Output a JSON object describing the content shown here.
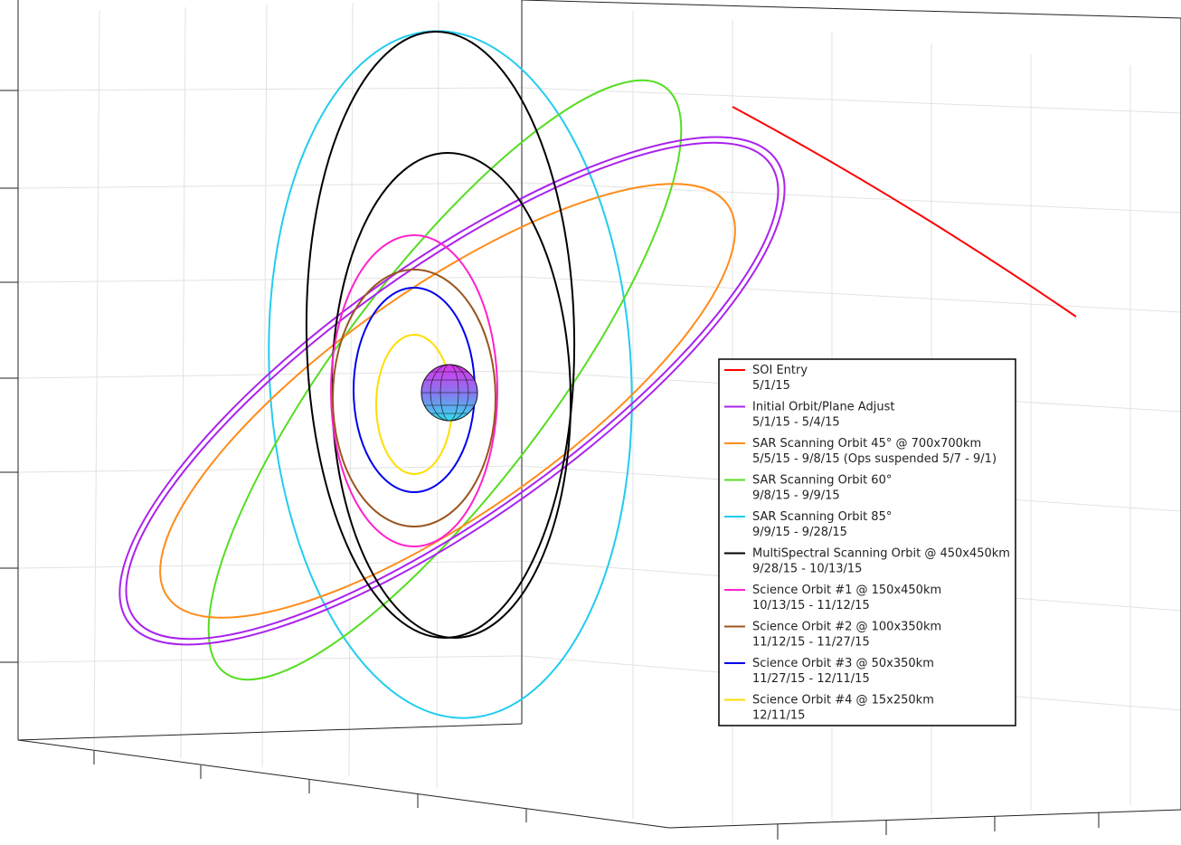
{
  "legend": {
    "entries": [
      {
        "name": "SOI Entry",
        "dates": "5/1/15",
        "color": "#ff0000"
      },
      {
        "name": "Initial Orbit/Plane Adjust",
        "dates": "5/1/15 - 5/4/15",
        "color": "#aa22ee"
      },
      {
        "name": "SAR Scanning Orbit 45° @ 700x700km",
        "dates": "5/5/15 - 9/8/15 (Ops suspended 5/7 - 9/1)",
        "color": "#ff8c1a"
      },
      {
        "name": "SAR Scanning Orbit 60°",
        "dates": "9/8/15 - 9/9/15",
        "color": "#55dd22"
      },
      {
        "name": "SAR Scanning Orbit 85°",
        "dates": "9/9/15 - 9/28/15",
        "color": "#22ccf0"
      },
      {
        "name": "MultiSpectral Scanning Orbit @ 450x450km",
        "dates": "9/28/15 - 10/13/15",
        "color": "#000000"
      },
      {
        "name": "Science Orbit #1 @ 150x450km",
        "dates": "10/13/15 - 11/12/15",
        "color": "#ff22cc"
      },
      {
        "name": "Science Orbit #2 @ 100x350km",
        "dates": "11/12/15 - 11/27/15",
        "color": "#9a5520"
      },
      {
        "name": "Science Orbit #3 @ 50x350km",
        "dates": "11/27/15 - 12/11/15",
        "color": "#0000ee"
      },
      {
        "name": "Science Orbit #4 @ 15x250km",
        "dates": "12/11/15",
        "color": "#ffdd00"
      }
    ]
  }
}
